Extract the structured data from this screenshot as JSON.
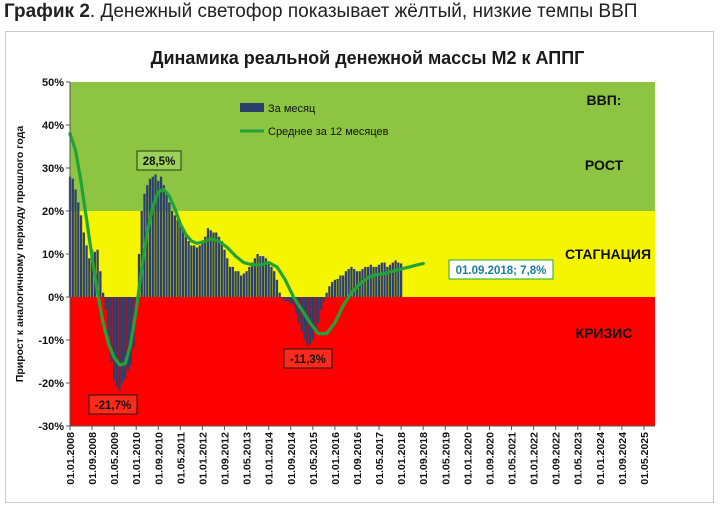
{
  "caption": {
    "label": "График 2",
    "text": ". Денежный светофор показывает жёлтый, низкие темпы ВВП"
  },
  "chart_data": {
    "type": "bar",
    "title": "Динамика реальной денежной массы М2 к АППГ",
    "ylabel": "Прирост к аналогичному периоду прошлого года",
    "ylim": [
      -30,
      50
    ],
    "yticks": [
      -30,
      -20,
      -10,
      0,
      10,
      20,
      30,
      40,
      50
    ],
    "ytick_labels": [
      "-30%",
      "-20%",
      "-10%",
      "0%",
      "10%",
      "20%",
      "30%",
      "40%",
      "50%"
    ],
    "x_range": [
      2008.0,
      2025.6667
    ],
    "xtick_labels": [
      "01.01.2008",
      "01.09.2008",
      "01.05.2009",
      "01.01.2010",
      "01.09.2010",
      "01.05.2011",
      "01.01.2012",
      "01.09.2012",
      "01.05.2013",
      "01.01.2014",
      "01.09.2014",
      "01.05.2015",
      "01.01.2016",
      "01.09.2016",
      "01.05.2017",
      "01.01.2018",
      "01.09.2018",
      "01.05.2019",
      "01.01.2020",
      "01.09.2020",
      "01.05.2021",
      "01.01.2022",
      "01.09.2022",
      "01.05.2023",
      "01.01.2024",
      "01.09.2024",
      "01.05.2025"
    ],
    "zones": [
      {
        "name": "ВВП:",
        "from": 20,
        "to": 50,
        "color": "#8dc542"
      },
      {
        "name": "РОСТ",
        "from": 20,
        "to": 50,
        "color": "#8dc542"
      },
      {
        "name": "СТАГНАЦИЯ",
        "from": 0,
        "to": 20,
        "color": "#f5f500"
      },
      {
        "name": "КРИЗИС",
        "from": -30,
        "to": 0,
        "color": "#ff0000"
      }
    ],
    "series": [
      {
        "name": "За месяц",
        "type": "bar",
        "color": "#2b3f6b",
        "start": 2008.0,
        "step": 0.08333,
        "values": [
          28,
          27.5,
          25,
          22,
          19,
          15,
          12,
          9,
          11,
          10.5,
          11,
          6,
          1,
          -3,
          -9,
          -15,
          -19.5,
          -21,
          -21.7,
          -20,
          -19,
          -17,
          -16,
          -12,
          -3,
          10,
          20,
          24,
          26,
          27.5,
          28,
          28.5,
          27,
          28,
          26,
          24,
          22,
          20,
          19,
          18,
          17,
          16,
          14,
          13,
          12,
          12,
          11.5,
          12,
          13,
          14,
          16,
          15.5,
          15,
          15,
          14,
          13,
          11,
          9,
          7,
          7,
          6,
          6,
          5,
          5.5,
          6,
          7,
          8,
          9,
          10,
          9.5,
          9.5,
          9,
          8,
          7,
          6,
          4,
          1,
          -0.5,
          -1,
          -1,
          -1.5,
          -2,
          -4,
          -6,
          -8,
          -10,
          -11.3,
          -11,
          -10,
          -8,
          -6,
          -3,
          -1,
          1,
          2.5,
          3.5,
          4,
          4.2,
          5,
          5,
          6,
          6.5,
          7,
          6.5,
          6,
          6,
          6.5,
          7,
          7,
          7.5,
          7,
          7,
          7.5,
          8,
          8,
          7,
          7.5,
          8,
          8.5,
          8,
          7.8
        ]
      },
      {
        "name": "Среднее за 12 месяцев",
        "type": "line",
        "color": "#22a339",
        "x": [
          2008.0,
          2008.17,
          2008.33,
          2008.5,
          2008.67,
          2008.83,
          2009.0,
          2009.17,
          2009.33,
          2009.5,
          2009.67,
          2009.83,
          2010.0,
          2010.17,
          2010.33,
          2010.5,
          2010.67,
          2010.83,
          2011.0,
          2011.17,
          2011.33,
          2011.5,
          2011.67,
          2011.83,
          2012.0,
          2012.25,
          2012.5,
          2012.75,
          2013.0,
          2013.25,
          2013.5,
          2013.75,
          2014.0,
          2014.25,
          2014.5,
          2014.75,
          2015.0,
          2015.25,
          2015.5,
          2015.75,
          2016.0,
          2016.25,
          2016.5,
          2016.75,
          2017.0,
          2017.25,
          2017.5,
          2017.75,
          2018.0,
          2018.25,
          2018.5,
          2018.67
        ],
        "values": [
          38,
          34,
          27,
          18,
          9,
          1,
          -6,
          -11,
          -14,
          -15.8,
          -15.5,
          -11,
          -3,
          7,
          15,
          21,
          24.5,
          25,
          23.5,
          20.5,
          17,
          14.5,
          13,
          12.5,
          12.8,
          13.5,
          13,
          11.5,
          9.5,
          8,
          7.5,
          7.5,
          8,
          7,
          4,
          0,
          -3,
          -6,
          -8.5,
          -8.5,
          -6,
          -2,
          1,
          3,
          4.5,
          5.2,
          5.5,
          6,
          6.5,
          7,
          7.5,
          7.8
        ]
      }
    ],
    "legend": {
      "position": "top-left",
      "entries": [
        "За месяц",
        "Среднее за 12 месяцев"
      ]
    },
    "annotations": [
      {
        "text": "28,5%",
        "x": 2010.5,
        "y": 28.5
      },
      {
        "text": "-21,7%",
        "x": 2009.5,
        "y": -21.7
      },
      {
        "text": "-11,3%",
        "x": 2015.2,
        "y": -11.3
      },
      {
        "text": "01.09.2018; 7,8%",
        "x": 2018.67,
        "y": 7.8
      }
    ]
  }
}
